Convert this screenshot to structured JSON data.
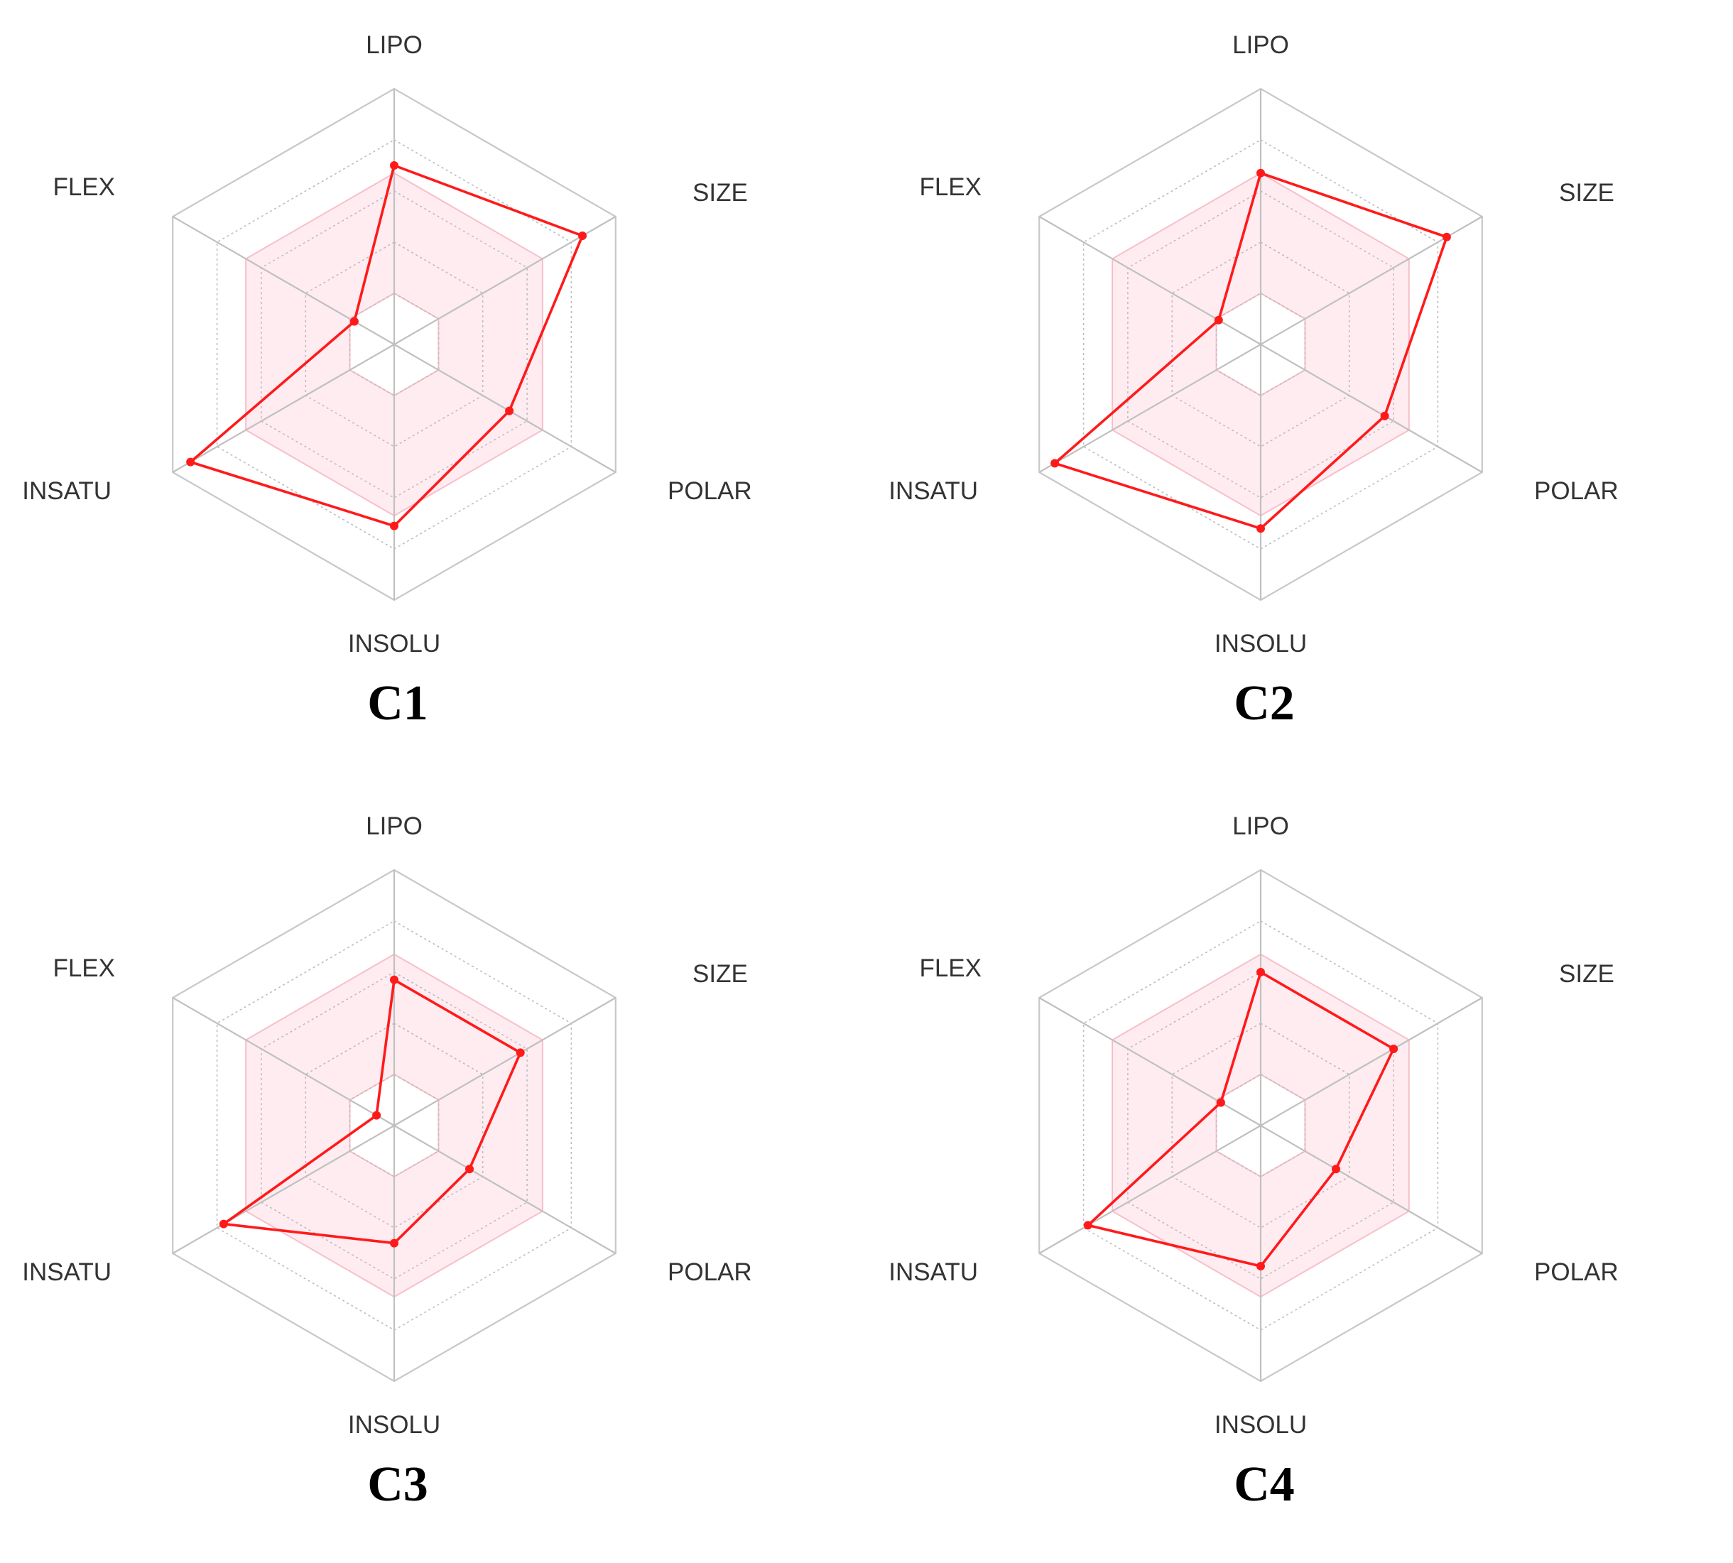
{
  "colors": {
    "profile": "#ff1a1a",
    "band_fill": "#ffc9d6",
    "band_stroke": "#f08a9c"
  },
  "axes": [
    "LIPO",
    "SIZE",
    "POLAR",
    "INSOLU",
    "INSATU",
    "FLEX"
  ],
  "chart_data": [
    {
      "type": "radar",
      "title": "C1",
      "axes": [
        "LIPO",
        "SIZE",
        "POLAR",
        "INSOLU",
        "INSATU",
        "FLEX"
      ],
      "series": [
        {
          "values": [
            0.7,
            0.85,
            0.52,
            0.71,
            0.92,
            0.18
          ]
        }
      ],
      "band_outer": 0.67,
      "band_inner": 0.2,
      "grid_levels": 5,
      "grid": true
    },
    {
      "type": "radar",
      "title": "C2",
      "axes": [
        "LIPO",
        "SIZE",
        "POLAR",
        "INSOLU",
        "INSATU",
        "FLEX"
      ],
      "series": [
        {
          "values": [
            0.67,
            0.84,
            0.56,
            0.72,
            0.93,
            0.19
          ]
        }
      ],
      "band_outer": 0.67,
      "band_inner": 0.2,
      "grid_levels": 5,
      "grid": true
    },
    {
      "type": "radar",
      "title": "C3",
      "axes": [
        "LIPO",
        "SIZE",
        "POLAR",
        "INSOLU",
        "INSATU",
        "FLEX"
      ],
      "series": [
        {
          "values": [
            0.57,
            0.57,
            0.34,
            0.46,
            0.77,
            0.08
          ]
        }
      ],
      "band_outer": 0.67,
      "band_inner": 0.2,
      "grid_levels": 5,
      "grid": true
    },
    {
      "type": "radar",
      "title": "C4",
      "axes": [
        "LIPO",
        "SIZE",
        "POLAR",
        "INSOLU",
        "INSATU",
        "FLEX"
      ],
      "series": [
        {
          "values": [
            0.6,
            0.6,
            0.34,
            0.55,
            0.78,
            0.18
          ]
        }
      ],
      "band_outer": 0.67,
      "band_inner": 0.2,
      "grid_levels": 5,
      "grid": true
    }
  ]
}
